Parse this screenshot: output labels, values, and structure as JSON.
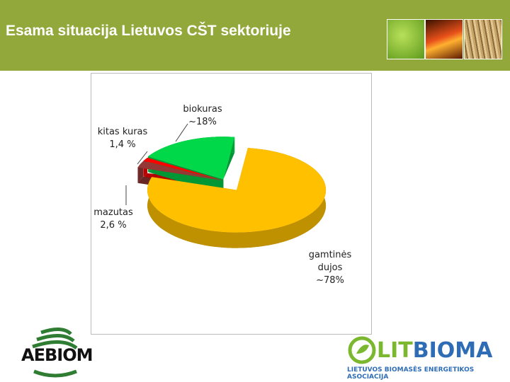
{
  "header": {
    "title": "Esama situacija Lietuvos CŠT sektoriuje"
  },
  "chart_data": {
    "type": "pie",
    "categories": [
      "gamtinės dujos",
      "mazutas",
      "kitas kuras",
      "biokuras"
    ],
    "values": [
      78,
      2.6,
      1.4,
      18
    ],
    "value_labels": [
      "~78%",
      "2,6 %",
      "1,4 %",
      "~18%"
    ],
    "colors": [
      "#ffc000",
      "#953735",
      "#ff0000",
      "#00d84a"
    ]
  },
  "logos": {
    "left": "AEBIOM",
    "right": [
      "LIT",
      "BIOMA"
    ],
    "right_subtitle": "LIETUVOS BIOMASĖS ENERGETIKOS ASOCIACIJA"
  }
}
